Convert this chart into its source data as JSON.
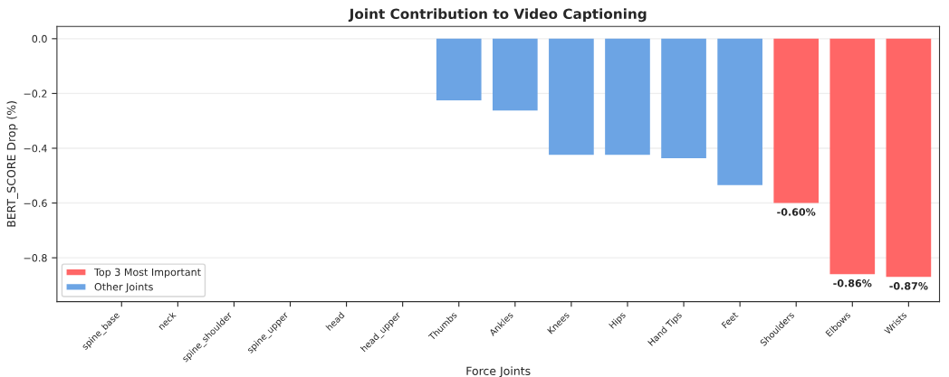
{
  "chart_data": {
    "type": "bar",
    "title": "Joint Contribution to Video Captioning",
    "xlabel": "Force Joints",
    "ylabel": "BERT_SCORE Drop (%)",
    "categories": [
      "spine_base",
      "neck",
      "spine_shoulder",
      "spine_upper",
      "head",
      "head_upper",
      "Thumbs",
      "Ankles",
      "Knees",
      "Hips",
      "Hand Tips",
      "Feet",
      "Shoulders",
      "Elbows",
      "Wrists"
    ],
    "series": [
      {
        "name": "Top 3 Most Important",
        "color": "#ff6666",
        "values": [
          null,
          null,
          null,
          null,
          null,
          null,
          null,
          null,
          null,
          null,
          null,
          null,
          -0.6,
          -0.86,
          -0.87
        ],
        "value_labels": [
          null,
          null,
          null,
          null,
          null,
          null,
          null,
          null,
          null,
          null,
          null,
          null,
          "-0.60%",
          "-0.86%",
          "-0.87%"
        ]
      },
      {
        "name": "Other Joints",
        "color": "#6ca4e4",
        "values": [
          0,
          0,
          0,
          0,
          0,
          0,
          -0.225,
          -0.262,
          -0.424,
          -0.424,
          -0.436,
          -0.535,
          null,
          null,
          null
        ]
      }
    ],
    "ylim": [
      -0.96,
      0.045
    ],
    "yticks": [
      {
        "value": -0.8,
        "label": "−0.8"
      },
      {
        "value": -0.6,
        "label": "−0.6"
      },
      {
        "value": -0.4,
        "label": "−0.4"
      },
      {
        "value": -0.2,
        "label": "−0.2"
      },
      {
        "value": 0.0,
        "label": "0.0"
      }
    ],
    "grid": "y",
    "legend": "lower left"
  }
}
